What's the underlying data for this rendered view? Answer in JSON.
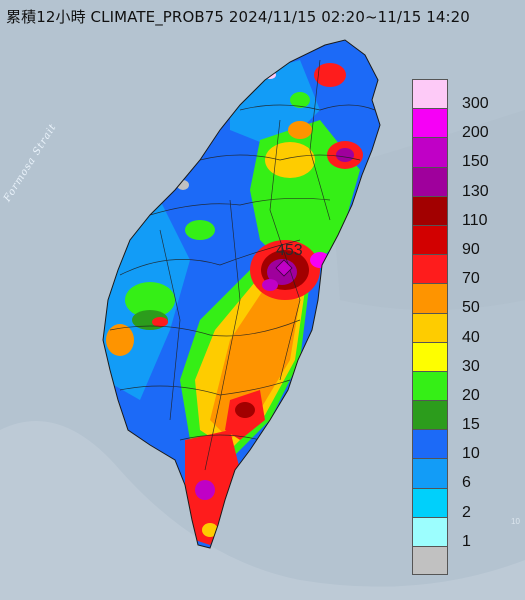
{
  "header": {
    "title": "累積12小時 CLIMATE_PROB75 2024/11/15 02:20~11/15 14:20"
  },
  "map": {
    "strait_label": "Formosa Strait",
    "max_marker_value": "453",
    "stray_label": "10"
  },
  "legend": {
    "items": [
      {
        "value": "300",
        "color": "#fdcaf7"
      },
      {
        "value": "200",
        "color": "#f600f6"
      },
      {
        "value": "150",
        "color": "#c000c6"
      },
      {
        "value": "130",
        "color": "#9f009c"
      },
      {
        "value": "110",
        "color": "#a20000"
      },
      {
        "value": "90",
        "color": "#d20000"
      },
      {
        "value": "70",
        "color": "#fe1c1c"
      },
      {
        "value": "50",
        "color": "#fe9400"
      },
      {
        "value": "40",
        "color": "#fecc00"
      },
      {
        "value": "30",
        "color": "#fefe00"
      },
      {
        "value": "20",
        "color": "#35ef16"
      },
      {
        "value": "15",
        "color": "#2c9c1c"
      },
      {
        "value": "10",
        "color": "#1c6af7"
      },
      {
        "value": "6",
        "color": "#129cf7"
      },
      {
        "value": "2",
        "color": "#00d0fb"
      },
      {
        "value": "1",
        "color": "#9cfefe"
      },
      {
        "value": "",
        "color": "#c1c1c1"
      }
    ]
  }
}
